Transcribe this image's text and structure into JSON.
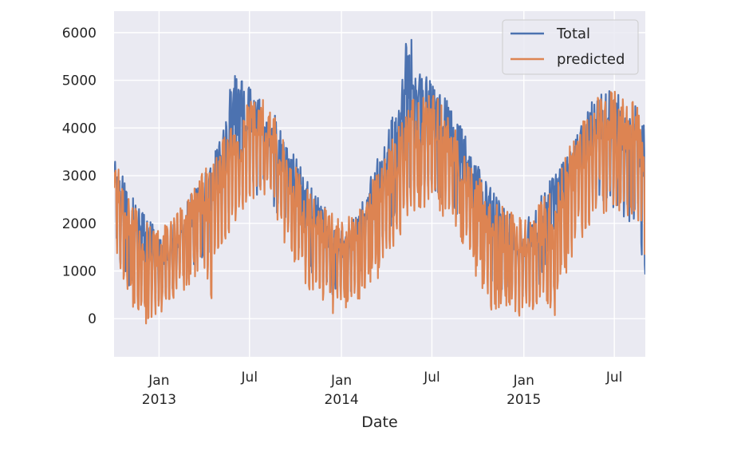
{
  "chart_data": {
    "type": "line",
    "xlabel": "Date",
    "title": "",
    "ylabel": "",
    "x_range": [
      "2012-10-03",
      "2015-09-01"
    ],
    "ylim": [
      -800,
      6450
    ],
    "yticks": [
      0,
      1000,
      2000,
      3000,
      4000,
      5000,
      6000
    ],
    "xticks": [
      {
        "date": "2013-01-01",
        "label": "Jan",
        "sublabel": "2013"
      },
      {
        "date": "2013-07-01",
        "label": "Jul",
        "sublabel": ""
      },
      {
        "date": "2014-01-01",
        "label": "Jan",
        "sublabel": "2014"
      },
      {
        "date": "2014-07-01",
        "label": "Jul",
        "sublabel": ""
      },
      {
        "date": "2015-01-01",
        "label": "Jan",
        "sublabel": "2015"
      },
      {
        "date": "2015-07-01",
        "label": "Jul",
        "sublabel": ""
      }
    ],
    "grid": true,
    "background": "#eaeaf2",
    "legend_position": "top-right",
    "frequency": "daily",
    "series": [
      {
        "name": "Total",
        "color": "#4c72b0",
        "x": [
          "2012-10-03",
          "2012-10-17",
          "2012-11-01",
          "2012-11-15",
          "2012-12-01",
          "2012-12-15",
          "2013-01-01",
          "2013-01-15",
          "2013-02-01",
          "2013-02-15",
          "2013-03-01",
          "2013-03-15",
          "2013-04-01",
          "2013-04-15",
          "2013-05-01",
          "2013-05-15",
          "2013-06-01",
          "2013-06-15",
          "2013-07-01",
          "2013-07-15",
          "2013-08-01",
          "2013-08-15",
          "2013-09-01",
          "2013-09-15",
          "2013-10-01",
          "2013-10-15",
          "2013-11-01",
          "2013-11-15",
          "2013-12-01",
          "2013-12-15",
          "2014-01-01",
          "2014-01-15",
          "2014-02-01",
          "2014-02-15",
          "2014-03-01",
          "2014-03-15",
          "2014-04-01",
          "2014-04-15",
          "2014-05-01",
          "2014-05-15",
          "2014-06-01",
          "2014-06-15",
          "2014-07-01",
          "2014-07-15",
          "2014-08-01",
          "2014-08-15",
          "2014-09-01",
          "2014-09-15",
          "2014-10-01",
          "2014-10-15",
          "2014-11-01",
          "2014-11-15",
          "2014-12-01",
          "2014-12-15",
          "2015-01-01",
          "2015-01-15",
          "2015-02-01",
          "2015-02-15",
          "2015-03-01",
          "2015-03-15",
          "2015-04-01",
          "2015-04-15",
          "2015-05-01",
          "2015-05-15",
          "2015-06-01",
          "2015-06-15",
          "2015-07-01",
          "2015-07-15",
          "2015-08-01",
          "2015-08-15",
          "2015-09-01"
        ],
        "high": [
          3600,
          3100,
          2700,
          2500,
          2300,
          2100,
          1700,
          1800,
          2000,
          2200,
          2500,
          2800,
          3000,
          3300,
          3700,
          4700,
          5100,
          5000,
          4900,
          4800,
          4700,
          4500,
          4000,
          3700,
          3400,
          3100,
          2800,
          2600,
          2300,
          2100,
          1900,
          2000,
          2200,
          2600,
          3000,
          3400,
          3800,
          4300,
          5300,
          6100,
          5400,
          5200,
          5000,
          4800,
          4600,
          4300,
          4100,
          3600,
          3200,
          3000,
          2800,
          2500,
          2300,
          2100,
          2000,
          2200,
          2500,
          2800,
          3000,
          3200,
          3500,
          3800,
          4200,
          4700,
          5000,
          4900,
          4800,
          4700,
          4600,
          4500,
          4400
        ],
        "low": [
          1800,
          1000,
          700,
          600,
          500,
          400,
          300,
          400,
          600,
          800,
          900,
          1100,
          1200,
          1500,
          1800,
          2000,
          2200,
          2400,
          2600,
          2600,
          2500,
          2300,
          2100,
          1900,
          1500,
          1100,
          900,
          700,
          600,
          500,
          500,
          400,
          700,
          900,
          1200,
          1500,
          1700,
          2000,
          2400,
          2600,
          2700,
          2600,
          2600,
          2500,
          2400,
          2200,
          2100,
          1700,
          1300,
          1000,
          700,
          500,
          400,
          300,
          300,
          400,
          700,
          1100,
          1400,
          1700,
          2000,
          2300,
          2400,
          2300,
          2200,
          2100,
          2000,
          2000,
          1900,
          1800,
          700
        ]
      },
      {
        "name": "predicted",
        "color": "#dd8452",
        "x": [
          "2012-10-03",
          "2012-10-17",
          "2012-11-01",
          "2012-11-15",
          "2012-12-01",
          "2012-12-15",
          "2013-01-01",
          "2013-01-15",
          "2013-02-01",
          "2013-02-15",
          "2013-03-01",
          "2013-03-15",
          "2013-04-01",
          "2013-04-15",
          "2013-05-01",
          "2013-05-15",
          "2013-06-01",
          "2013-06-15",
          "2013-07-01",
          "2013-07-15",
          "2013-08-01",
          "2013-08-15",
          "2013-09-01",
          "2013-09-15",
          "2013-10-01",
          "2013-10-15",
          "2013-11-01",
          "2013-11-15",
          "2013-12-01",
          "2013-12-15",
          "2014-01-01",
          "2014-01-15",
          "2014-02-01",
          "2014-02-15",
          "2014-03-01",
          "2014-03-15",
          "2014-04-01",
          "2014-04-15",
          "2014-05-01",
          "2014-05-15",
          "2014-06-01",
          "2014-06-15",
          "2014-07-01",
          "2014-07-15",
          "2014-08-01",
          "2014-08-15",
          "2014-09-01",
          "2014-09-15",
          "2014-10-01",
          "2014-10-15",
          "2014-11-01",
          "2014-11-15",
          "2014-12-01",
          "2014-12-15",
          "2015-01-01",
          "2015-01-15",
          "2015-02-01",
          "2015-02-15",
          "2015-03-01",
          "2015-03-15",
          "2015-04-01",
          "2015-04-15",
          "2015-05-01",
          "2015-05-15",
          "2015-06-01",
          "2015-06-15",
          "2015-07-01",
          "2015-07-15",
          "2015-08-01",
          "2015-08-15",
          "2015-09-01"
        ],
        "high": [
          3400,
          3000,
          2600,
          2400,
          2200,
          2000,
          1900,
          2000,
          2200,
          2400,
          2600,
          2900,
          3100,
          3400,
          3700,
          3900,
          4100,
          4300,
          4700,
          4800,
          4700,
          4400,
          3900,
          3500,
          3200,
          2900,
          2600,
          2400,
          2300,
          2200,
          2100,
          2200,
          2300,
          2500,
          2900,
          3200,
          3600,
          3900,
          4200,
          4500,
          4700,
          4800,
          4800,
          4600,
          4300,
          4000,
          3600,
          3300,
          3000,
          2800,
          2600,
          2400,
          2300,
          2200,
          2100,
          2200,
          2400,
          2700,
          3000,
          3300,
          3600,
          3900,
          4200,
          4500,
          4700,
          4800,
          4800,
          4700,
          4600,
          4500,
          4400
        ],
        "low": [
          1800,
          500,
          200,
          0,
          -100,
          -300,
          100,
          200,
          300,
          500,
          600,
          800,
          900,
          -50,
          1000,
          1500,
          1800,
          2000,
          2400,
          2500,
          2400,
          2100,
          1800,
          1400,
          1000,
          600,
          400,
          300,
          200,
          100,
          300,
          100,
          200,
          500,
          700,
          800,
          1000,
          1300,
          1600,
          1900,
          2100,
          2200,
          2200,
          2100,
          2000,
          1800,
          1500,
          1100,
          800,
          300,
          0,
          100,
          200,
          0,
          100,
          -100,
          200,
          300,
          -500,
          700,
          1000,
          1300,
          1600,
          1900,
          2100,
          2200,
          2200,
          2100,
          2000,
          2000,
          1000
        ]
      }
    ]
  }
}
